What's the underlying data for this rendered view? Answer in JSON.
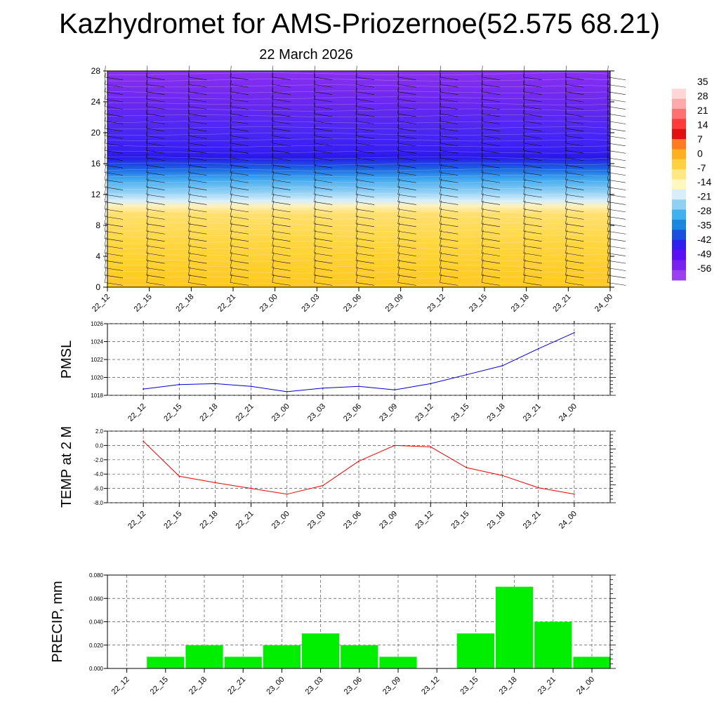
{
  "header": {
    "title": "Kazhydromet for AMS-Priozernoe(52.575 68.21)",
    "date": "22 March 2026"
  },
  "time_labels": [
    "22_12",
    "22_15",
    "22_18",
    "22_21",
    "23_00",
    "23_03",
    "23_06",
    "23_09",
    "23_12",
    "23_15",
    "23_18",
    "23_21",
    "24_00"
  ],
  "colorbar": {
    "labels": [
      "35",
      "28",
      "21",
      "14",
      "7",
      "0",
      "-7",
      "-14",
      "-21",
      "-28",
      "-35",
      "-42",
      "-49",
      "-56"
    ],
    "colors": [
      "#ffffff",
      "#ffd6d6",
      "#ffaaaa",
      "#ff7070",
      "#ff3a3a",
      "#e01010",
      "#ff7a20",
      "#ffb020",
      "#ffd040",
      "#ffe880",
      "#fff6c0",
      "#d8eefa",
      "#90d0f4",
      "#40b0ee",
      "#1a86e0",
      "#1a4ee0",
      "#3020f0",
      "#5a10f4",
      "#7a20f0",
      "#9a40f0"
    ],
    "data_colors": {
      "low": "#5a10f4",
      "mid": "#90d0f4",
      "high": "#ffd040"
    }
  },
  "chart_data": [
    {
      "type": "heatmap",
      "title": "",
      "x": [
        "22_12",
        "22_15",
        "22_18",
        "22_21",
        "23_00",
        "23_03",
        "23_06",
        "23_09",
        "23_12",
        "23_15",
        "23_18",
        "23_21",
        "24_00"
      ],
      "y_ticks": [
        "0",
        "4",
        "8",
        "12",
        "16",
        "20",
        "24",
        "28"
      ],
      "ylim": [
        0,
        28
      ],
      "xlabel": "",
      "ylabel": "",
      "layers": [
        {
          "from": 0,
          "to": 11,
          "value": -7
        },
        {
          "from": 11,
          "to": 13,
          "value": -21
        },
        {
          "from": 13,
          "to": 16,
          "value": -35
        },
        {
          "from": 16,
          "to": 18,
          "value": -56
        },
        {
          "from": 18,
          "to": 28,
          "value": -56
        }
      ],
      "wind_barbs": true
    },
    {
      "type": "line",
      "ylabel": "PMSL",
      "categories": [
        "22_12",
        "22_15",
        "22_18",
        "22_21",
        "23_00",
        "23_03",
        "23_06",
        "23_09",
        "23_12",
        "23_15",
        "23_18",
        "23_21",
        "24_00"
      ],
      "values": [
        1018.7,
        1019.2,
        1019.3,
        1019.0,
        1018.4,
        1018.8,
        1019.0,
        1018.6,
        1019.3,
        1020.3,
        1021.3,
        1023.2,
        1025.0
      ],
      "ylim": [
        1018,
        1026
      ],
      "y_ticks": [
        "1018",
        "1020",
        "1022",
        "1024",
        "1026"
      ],
      "color": "#0000cc",
      "grid": true
    },
    {
      "type": "line",
      "ylabel": "TEMP at 2 M",
      "categories": [
        "22_12",
        "22_15",
        "22_18",
        "22_21",
        "23_00",
        "23_03",
        "23_06",
        "23_09",
        "23_12",
        "23_15",
        "23_18",
        "23_21",
        "24_00"
      ],
      "values": [
        0.6,
        -4.3,
        -5.2,
        -6.0,
        -6.8,
        -5.6,
        -2.2,
        0.0,
        -0.2,
        -3.1,
        -4.2,
        -5.9,
        -6.8
      ],
      "ylim": [
        -8,
        2
      ],
      "y_ticks": [
        "-8.0",
        "-6.0",
        "-4.0",
        "-2.0",
        "0.0",
        "2.0"
      ],
      "color": "#ee0000",
      "grid": true
    },
    {
      "type": "bar",
      "ylabel": "PRECIP, mm",
      "categories": [
        "22_12",
        "22_15",
        "22_18",
        "22_21",
        "23_00",
        "23_03",
        "23_06",
        "23_09",
        "23_12",
        "23_15",
        "23_18",
        "23_21",
        "24_00"
      ],
      "values": [
        0,
        0.01,
        0.02,
        0.01,
        0.02,
        0.03,
        0.02,
        0.01,
        0,
        0.03,
        0.07,
        0.04,
        0.01
      ],
      "ylim": [
        0,
        0.08
      ],
      "y_ticks": [
        "0.000",
        "0.020",
        "0.040",
        "0.060",
        "0.080"
      ],
      "color": "#00ee00",
      "grid": true
    }
  ]
}
